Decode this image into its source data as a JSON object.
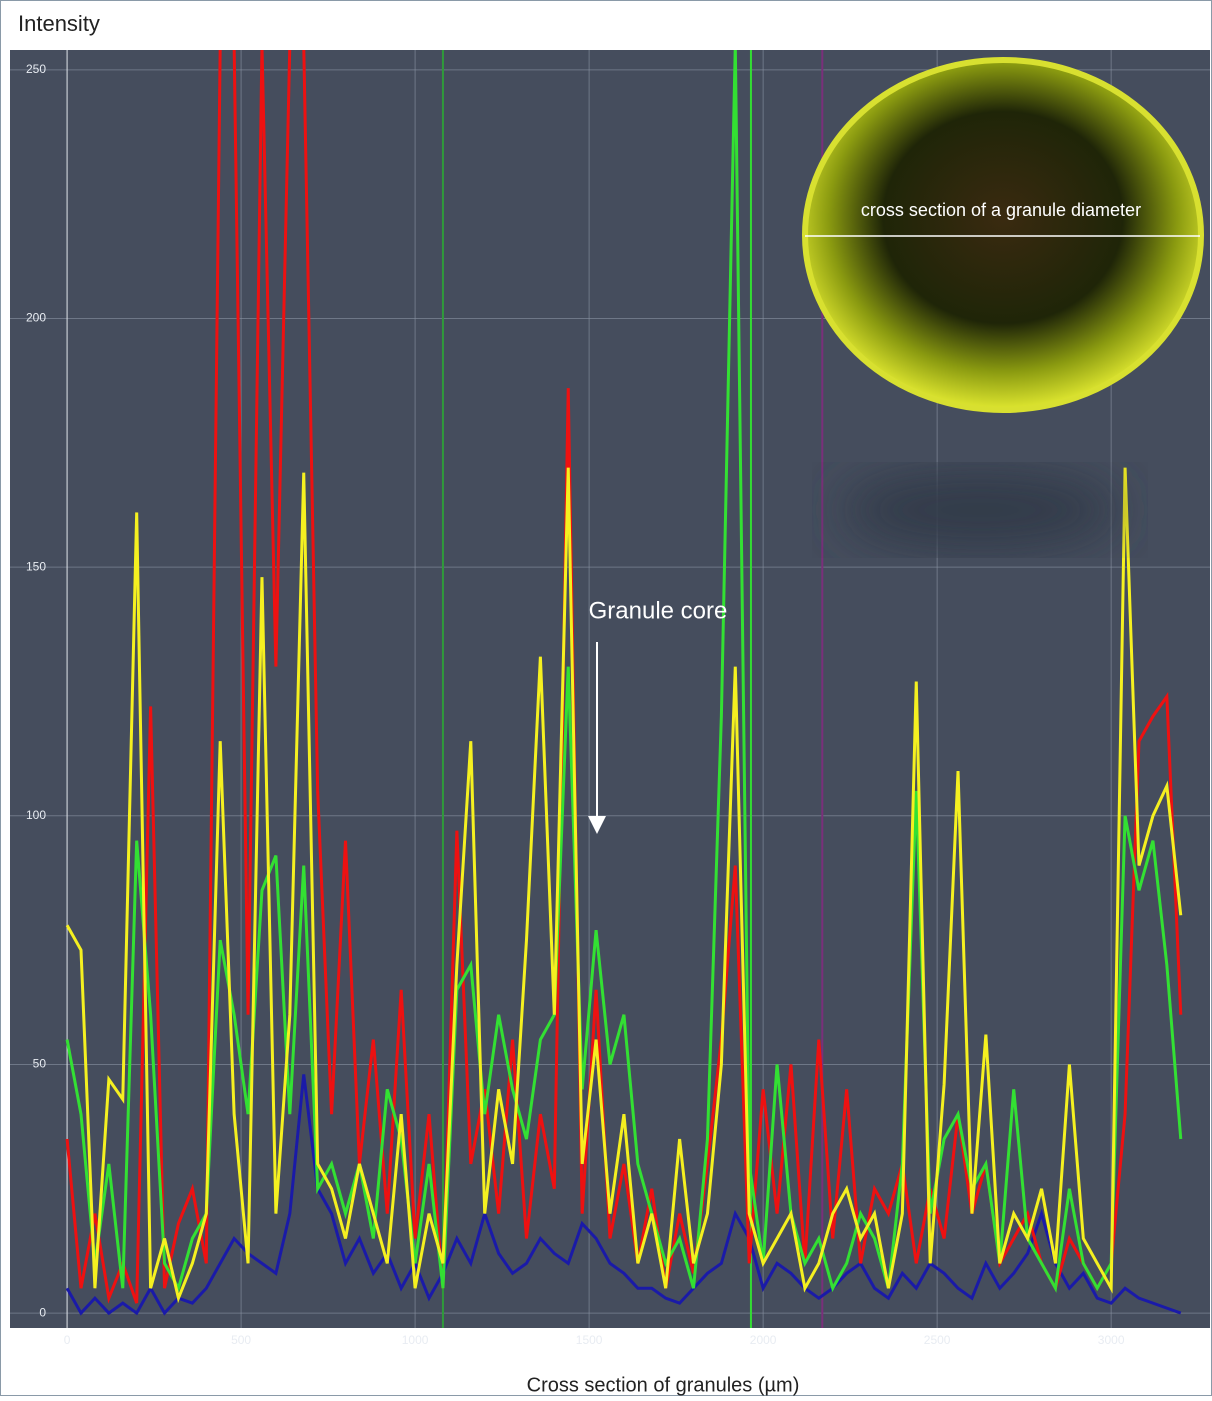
{
  "chart_data": {
    "type": "line",
    "y_label": "Intensity",
    "x_label": "Cross section of granules (µm)",
    "annotation": "Granule core",
    "inset_label": "cross section of a granule diameter",
    "xlim": [
      -164,
      3284
    ],
    "ylim": [
      -3,
      254
    ],
    "xticks": [
      0,
      500,
      1000,
      1500,
      2000,
      2500,
      3000
    ],
    "yticks": [
      0,
      50,
      100,
      150,
      200,
      250
    ],
    "grid": true,
    "vlines": [
      {
        "x": 1080,
        "color": "#2f9a3a"
      },
      {
        "x": 1965,
        "color": "#33dd33"
      },
      {
        "x": 2170,
        "color": "#7a2f7a"
      }
    ],
    "x": [
      0,
      40,
      80,
      120,
      160,
      200,
      240,
      280,
      320,
      360,
      400,
      440,
      480,
      520,
      560,
      600,
      640,
      680,
      720,
      760,
      800,
      840,
      880,
      920,
      960,
      1000,
      1040,
      1080,
      1120,
      1160,
      1200,
      1240,
      1280,
      1320,
      1360,
      1400,
      1440,
      1480,
      1520,
      1560,
      1600,
      1640,
      1680,
      1720,
      1760,
      1800,
      1840,
      1880,
      1920,
      1960,
      2000,
      2040,
      2080,
      2120,
      2160,
      2200,
      2240,
      2280,
      2320,
      2360,
      2400,
      2440,
      2480,
      2520,
      2560,
      2600,
      2640,
      2680,
      2720,
      2760,
      2800,
      2840,
      2880,
      2920,
      2960,
      3000,
      3040,
      3080,
      3120,
      3160,
      3200
    ],
    "series": [
      {
        "color": "#1a1aa8",
        "values": [
          5,
          0,
          3,
          0,
          2,
          0,
          5,
          0,
          3,
          2,
          5,
          10,
          15,
          12,
          10,
          8,
          20,
          48,
          25,
          20,
          10,
          15,
          8,
          12,
          5,
          10,
          3,
          8,
          15,
          10,
          20,
          12,
          8,
          10,
          15,
          12,
          10,
          18,
          15,
          10,
          8,
          5,
          5,
          3,
          2,
          5,
          8,
          10,
          20,
          15,
          5,
          10,
          8,
          5,
          3,
          5,
          8,
          10,
          5,
          3,
          8,
          5,
          10,
          8,
          5,
          3,
          10,
          5,
          8,
          12,
          20,
          10,
          5,
          8,
          3,
          2,
          5,
          3,
          2,
          1,
          0
        ]
      },
      {
        "color": "#ee1111",
        "values": [
          35,
          5,
          20,
          3,
          10,
          2,
          122,
          5,
          18,
          25,
          10,
          255,
          255,
          60,
          255,
          130,
          255,
          255,
          105,
          40,
          95,
          30,
          55,
          20,
          65,
          15,
          40,
          5,
          97,
          30,
          45,
          20,
          55,
          15,
          40,
          25,
          186,
          20,
          65,
          15,
          30,
          10,
          25,
          5,
          20,
          8,
          30,
          55,
          90,
          10,
          45,
          20,
          50,
          10,
          55,
          15,
          45,
          10,
          25,
          20,
          30,
          10,
          25,
          15,
          40,
          20,
          30,
          10,
          15,
          20,
          10,
          5,
          15,
          10,
          5,
          10,
          40,
          115,
          120,
          124,
          60
        ]
      },
      {
        "color": "#33e033",
        "values": [
          55,
          40,
          10,
          30,
          5,
          95,
          60,
          10,
          5,
          15,
          20,
          75,
          60,
          40,
          85,
          92,
          40,
          90,
          25,
          30,
          20,
          30,
          15,
          45,
          35,
          10,
          30,
          5,
          65,
          70,
          40,
          60,
          45,
          35,
          55,
          60,
          130,
          45,
          77,
          50,
          60,
          30,
          20,
          10,
          15,
          5,
          35,
          120,
          255,
          30,
          10,
          50,
          20,
          10,
          15,
          5,
          10,
          20,
          15,
          5,
          30,
          105,
          20,
          35,
          40,
          25,
          30,
          10,
          45,
          15,
          10,
          5,
          25,
          10,
          5,
          10,
          100,
          85,
          95,
          70,
          35
        ]
      },
      {
        "color": "#f5f020",
        "values": [
          78,
          73,
          5,
          47,
          43,
          161,
          5,
          15,
          3,
          10,
          20,
          115,
          40,
          10,
          148,
          20,
          60,
          169,
          30,
          25,
          15,
          30,
          20,
          10,
          40,
          5,
          20,
          10,
          70,
          115,
          20,
          45,
          30,
          75,
          132,
          60,
          170,
          30,
          55,
          20,
          40,
          10,
          20,
          5,
          35,
          10,
          20,
          50,
          130,
          20,
          10,
          15,
          20,
          5,
          10,
          20,
          25,
          15,
          20,
          5,
          20,
          127,
          10,
          46,
          109,
          20,
          56,
          10,
          20,
          15,
          25,
          10,
          50,
          15,
          10,
          5,
          170,
          90,
          100,
          106,
          80
        ]
      }
    ]
  }
}
